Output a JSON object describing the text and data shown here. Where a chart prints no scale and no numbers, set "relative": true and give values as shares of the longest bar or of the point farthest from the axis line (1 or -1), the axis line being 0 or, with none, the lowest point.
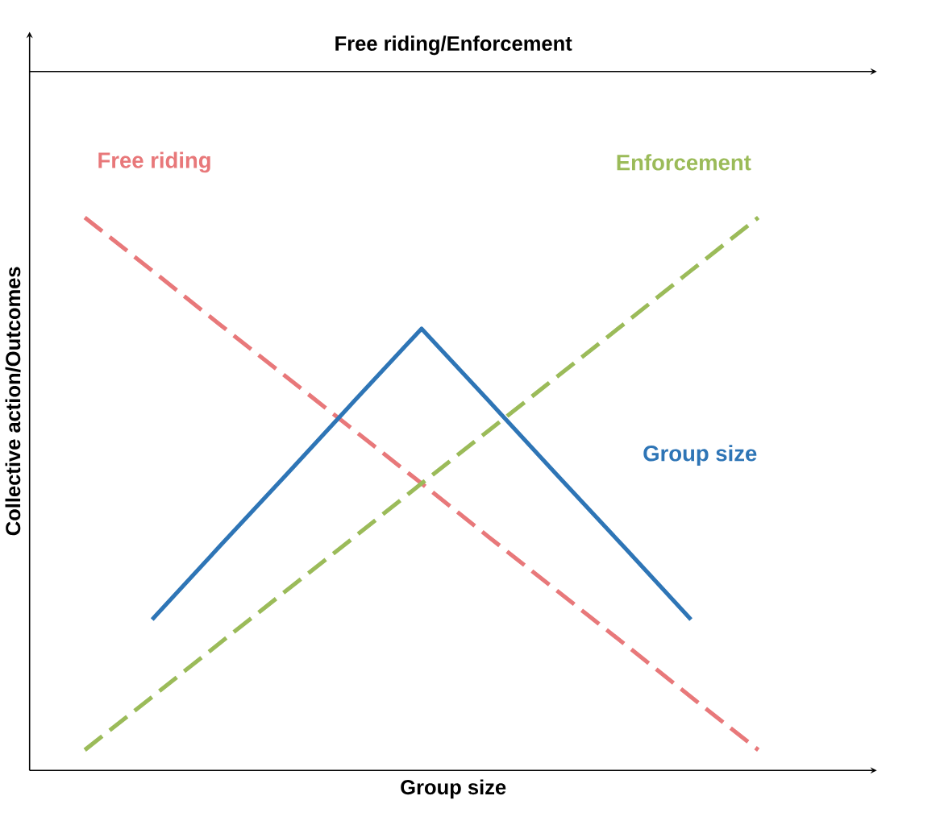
{
  "chart_data": {
    "type": "line",
    "relative": true,
    "xlabel": "Group size",
    "ylabel": "Collective action/Outcomes",
    "x2label": "Free riding/Enforcement",
    "tick_labels": false,
    "categories": [
      null,
      null,
      null,
      null,
      null,
      null,
      null,
      null,
      null,
      null,
      null
    ],
    "series": [
      {
        "name": "Free riding",
        "color": "#e8787a",
        "line_style": "dashed",
        "values": [
          1,
          0.904,
          0.807,
          0.711,
          0.615,
          0.519,
          0.422,
          0.326,
          0.23,
          0.133,
          0.037
        ]
      },
      {
        "name": "Enforcement",
        "color": "#9bbb59",
        "line_style": "dashed",
        "values": [
          0.037,
          0.133,
          0.23,
          0.326,
          0.422,
          0.519,
          0.615,
          0.711,
          0.807,
          0.904,
          1
        ]
      },
      {
        "name": "Group size",
        "color": "#2e75b6",
        "line_style": "solid",
        "values": [
          null,
          0.273,
          0.405,
          0.536,
          0.668,
          0.799,
          0.668,
          0.536,
          0.405,
          0.273,
          null
        ]
      }
    ]
  }
}
